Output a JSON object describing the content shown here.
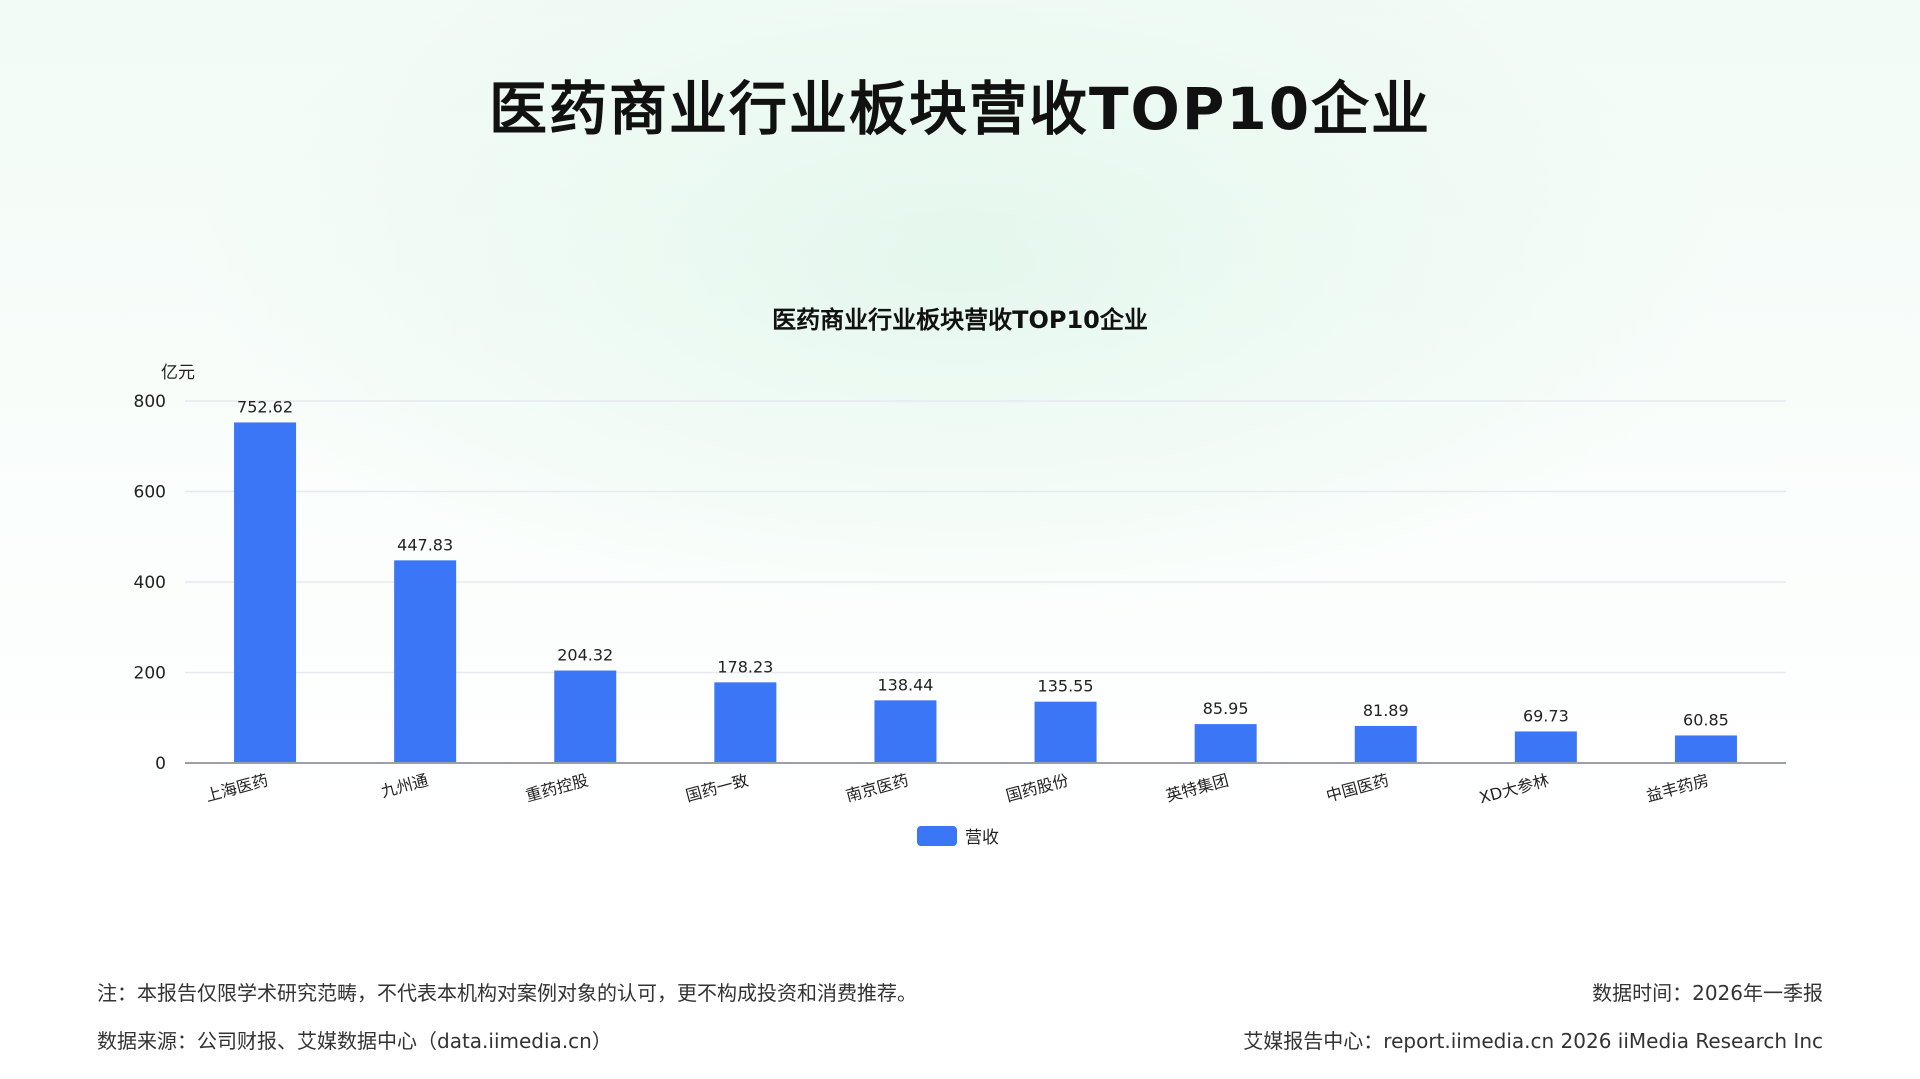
{
  "page": {
    "title": "医药商业行业板块营收TOP10企业"
  },
  "chart_data": {
    "type": "bar",
    "title": "医药商业行业板块营收TOP10企业",
    "unit_label": "亿元",
    "categories": [
      "上海医药",
      "九州通",
      "重药控股",
      "国药一致",
      "南京医药",
      "国药股份",
      "英特集团",
      "中国医药",
      "XD大参林",
      "益丰药房"
    ],
    "series": [
      {
        "name": "营收",
        "values": [
          752.62,
          447.83,
          204.32,
          178.23,
          138.44,
          135.55,
          85.95,
          81.89,
          69.73,
          60.85
        ]
      }
    ],
    "value_labels": [
      "752.62",
      "447.83",
      "204.32",
      "178.23",
      "138.44",
      "135.55",
      "85.95",
      "81.89",
      "69.73",
      "60.85"
    ],
    "ylim": [
      0,
      800
    ],
    "yticks": [
      0,
      200,
      400,
      600,
      800
    ],
    "grid": true,
    "legend_position": "bottom",
    "color": "#3b76f6"
  },
  "footer": {
    "note": "注：本报告仅限学术研究范畴，不代表本机构对案例对象的认可，更不构成投资和消费推荐。",
    "source": "数据来源：公司财报、艾媒数据中心（data.iimedia.cn）",
    "data_time": "数据时间：2026年一季报",
    "report_center": "艾媒报告中心：report.iimedia.cn   2026 iiMedia Research Inc"
  }
}
